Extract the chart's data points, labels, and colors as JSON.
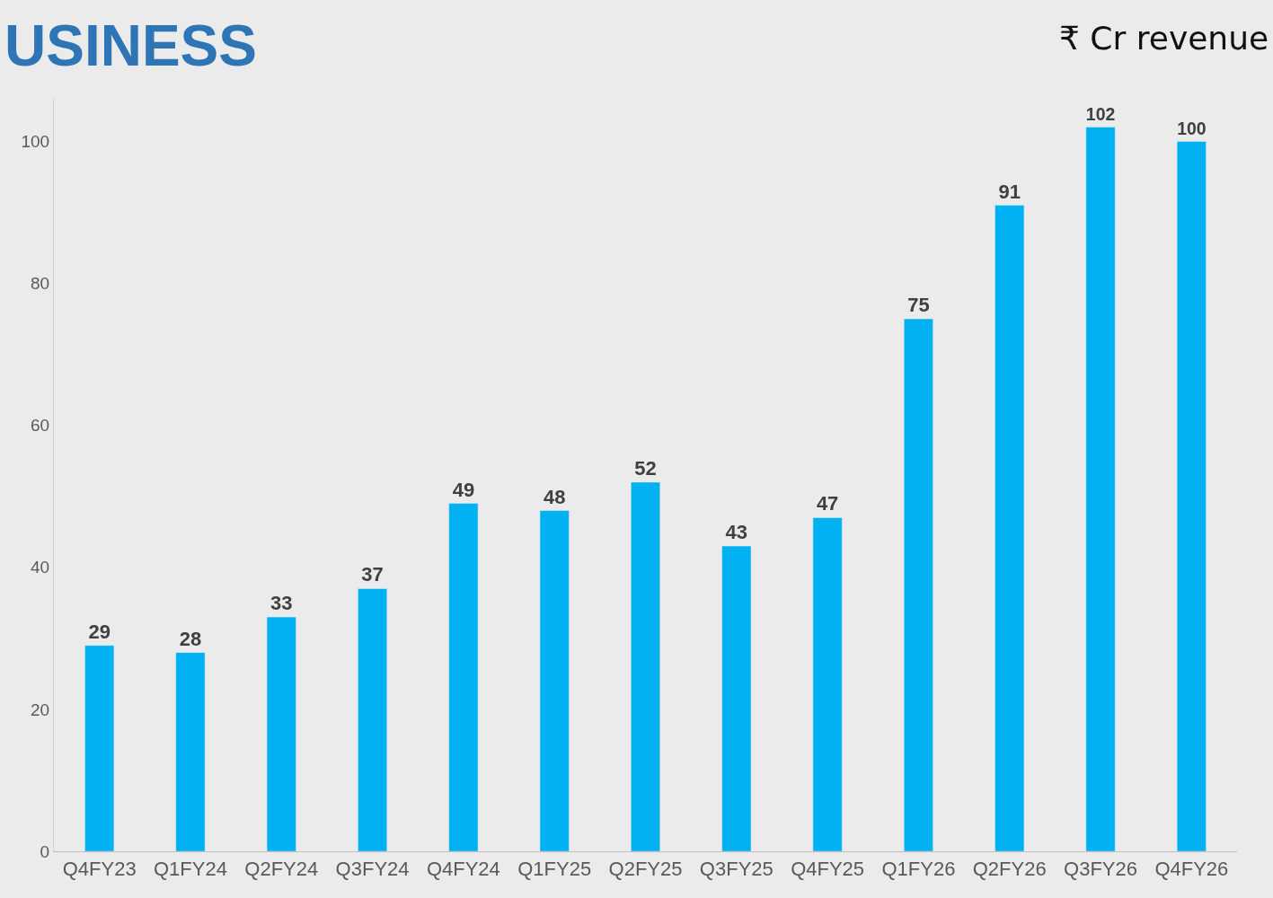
{
  "chart_data": {
    "type": "bar",
    "title": "USINESS",
    "subtitle": "₹ Cr revenue",
    "categories": [
      "Q4FY23",
      "Q1FY24",
      "Q2FY24",
      "Q3FY24",
      "Q4FY24",
      "Q1FY25",
      "Q2FY25",
      "Q3FY25",
      "Q4FY25",
      "Q1FY26",
      "Q2FY26",
      "Q3FY26",
      "Q4FY26"
    ],
    "values": [
      29,
      28,
      33,
      37,
      49,
      48,
      52,
      43,
      47,
      75,
      91,
      102,
      100
    ],
    "color": "#00b0f0",
    "ylim": [
      0,
      106
    ],
    "yticks": [
      0,
      20,
      40,
      60,
      80,
      100
    ],
    "grid": false,
    "data_labels": true
  }
}
